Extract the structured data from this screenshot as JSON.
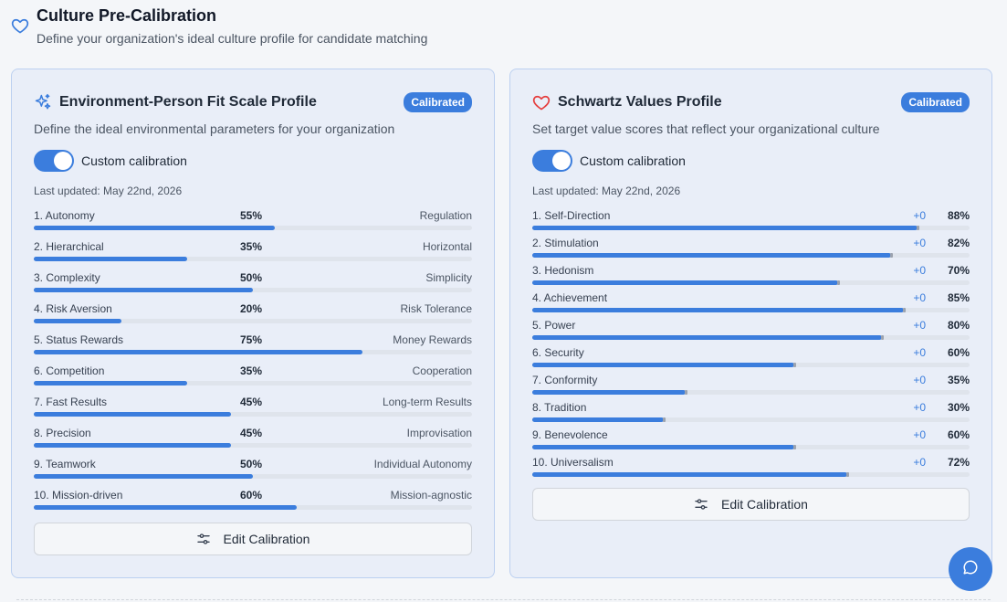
{
  "header": {
    "title": "Culture Pre-Calibration",
    "subtitle": "Define your organization's ideal culture profile for candidate matching"
  },
  "left_card": {
    "title": "Environment-Person Fit Scale Profile",
    "badge": "Calibrated",
    "description": "Define the ideal environmental parameters for your organization",
    "toggle_label": "Custom calibration",
    "toggle_on": true,
    "updated": "Last updated: May 22nd, 2026",
    "scales": [
      {
        "name": "1. Autonomy",
        "pct_label": "55%",
        "value": 55,
        "opposite": "Regulation"
      },
      {
        "name": "2. Hierarchical",
        "pct_label": "35%",
        "value": 35,
        "opposite": "Horizontal"
      },
      {
        "name": "3. Complexity",
        "pct_label": "50%",
        "value": 50,
        "opposite": "Simplicity"
      },
      {
        "name": "4. Risk Aversion",
        "pct_label": "20%",
        "value": 20,
        "opposite": "Risk Tolerance"
      },
      {
        "name": "5. Status Rewards",
        "pct_label": "75%",
        "value": 75,
        "opposite": "Money Rewards"
      },
      {
        "name": "6. Competition",
        "pct_label": "35%",
        "value": 35,
        "opposite": "Cooperation"
      },
      {
        "name": "7. Fast Results",
        "pct_label": "45%",
        "value": 45,
        "opposite": "Long-term Results"
      },
      {
        "name": "8. Precision",
        "pct_label": "45%",
        "value": 45,
        "opposite": "Improvisation"
      },
      {
        "name": "9. Teamwork",
        "pct_label": "50%",
        "value": 50,
        "opposite": "Individual Autonomy"
      },
      {
        "name": "10. Mission-driven",
        "pct_label": "60%",
        "value": 60,
        "opposite": "Mission-agnostic"
      }
    ],
    "edit_label": "Edit Calibration"
  },
  "right_card": {
    "title": "Schwartz Values Profile",
    "badge": "Calibrated",
    "description": "Set target value scores that reflect your organizational culture",
    "toggle_label": "Custom calibration",
    "toggle_on": true,
    "updated": "Last updated: May 22nd, 2026",
    "values": [
      {
        "name": "1. Self-Direction",
        "delta": "+0",
        "pct_label": "88%",
        "value": 88
      },
      {
        "name": "2. Stimulation",
        "delta": "+0",
        "pct_label": "82%",
        "value": 82
      },
      {
        "name": "3. Hedonism",
        "delta": "+0",
        "pct_label": "70%",
        "value": 70
      },
      {
        "name": "4. Achievement",
        "delta": "+0",
        "pct_label": "85%",
        "value": 85
      },
      {
        "name": "5. Power",
        "delta": "+0",
        "pct_label": "80%",
        "value": 80
      },
      {
        "name": "6. Security",
        "delta": "+0",
        "pct_label": "60%",
        "value": 60
      },
      {
        "name": "7. Conformity",
        "delta": "+0",
        "pct_label": "35%",
        "value": 35
      },
      {
        "name": "8. Tradition",
        "delta": "+0",
        "pct_label": "30%",
        "value": 30
      },
      {
        "name": "9. Benevolence",
        "delta": "+0",
        "pct_label": "60%",
        "value": 60
      },
      {
        "name": "10. Universalism",
        "delta": "+0",
        "pct_label": "72%",
        "value": 72
      }
    ],
    "edit_label": "Edit Calibration"
  },
  "colors": {
    "accent": "#3b7ddd",
    "card_bg": "#e9eef8",
    "heart_red": "#e53e3e"
  },
  "icons": {
    "header": "heart-outline-icon",
    "left_title": "sparkles-icon",
    "right_title": "heart-icon",
    "edit": "sliders-icon",
    "chat": "chat-bubble-icon"
  }
}
